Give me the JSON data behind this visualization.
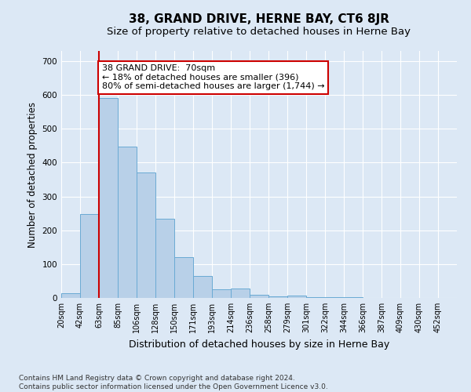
{
  "title": "38, GRAND DRIVE, HERNE BAY, CT6 8JR",
  "subtitle": "Size of property relative to detached houses in Herne Bay",
  "xlabel": "Distribution of detached houses by size in Herne Bay",
  "ylabel": "Number of detached properties",
  "footer_line1": "Contains HM Land Registry data © Crown copyright and database right 2024.",
  "footer_line2": "Contains public sector information licensed under the Open Government Licence v3.0.",
  "bin_labels": [
    "20sqm",
    "42sqm",
    "63sqm",
    "85sqm",
    "106sqm",
    "128sqm",
    "150sqm",
    "171sqm",
    "193sqm",
    "214sqm",
    "236sqm",
    "258sqm",
    "279sqm",
    "301sqm",
    "322sqm",
    "344sqm",
    "366sqm",
    "387sqm",
    "409sqm",
    "430sqm",
    "452sqm"
  ],
  "bar_heights": [
    15,
    248,
    590,
    448,
    370,
    235,
    120,
    65,
    25,
    28,
    10,
    5,
    8,
    3,
    2,
    2,
    1,
    1,
    1,
    1,
    1
  ],
  "bar_color": "#b8d0e8",
  "bar_edge_color": "#6aaad4",
  "vline_x_index": 2,
  "vline_color": "#cc0000",
  "annotation_text": "38 GRAND DRIVE:  70sqm\n← 18% of detached houses are smaller (396)\n80% of semi-detached houses are larger (1,744) →",
  "annotation_box_edge_color": "#cc0000",
  "annotation_text_color": "#000000",
  "ylim": [
    0,
    730
  ],
  "yticks": [
    0,
    100,
    200,
    300,
    400,
    500,
    600,
    700
  ],
  "background_color": "#dce8f5",
  "plot_bg_color": "#dce8f5",
  "grid_color": "#ffffff",
  "title_fontsize": 11,
  "subtitle_fontsize": 9.5,
  "ylabel_fontsize": 8.5,
  "xlabel_fontsize": 9,
  "tick_fontsize": 7,
  "annotation_fontsize": 8,
  "footer_fontsize": 6.5
}
